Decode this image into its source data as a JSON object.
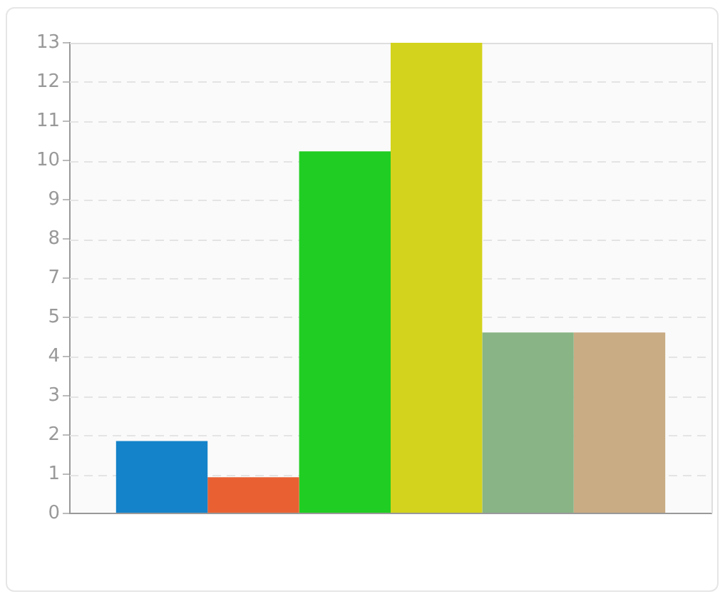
{
  "chart_data": {
    "type": "bar",
    "categories": [
      null
    ],
    "series": [
      {
        "color": "#1483c9",
        "values": [
          2
        ]
      },
      {
        "color": "#e96133",
        "values": [
          1
        ]
      },
      {
        "color": "#20cd22",
        "values": [
          10
        ]
      },
      {
        "color": "#d3d31d",
        "values": [
          13
        ]
      },
      {
        "color": "#89b485",
        "values": [
          5
        ]
      },
      {
        "color": "#c9ab84",
        "values": [
          5
        ]
      }
    ],
    "ylim": [
      0,
      13
    ],
    "yticks": [
      0,
      {
        "value": 1.0833,
        "label": "1"
      },
      {
        "value": 2.1667,
        "label": "2"
      },
      {
        "value": 3.25,
        "label": "3"
      },
      {
        "value": 4.3333,
        "label": "4"
      },
      {
        "value": 5.4167,
        "label": "5"
      },
      {
        "value": 6.5,
        "label": "7"
      },
      {
        "value": 7.5833,
        "label": "8"
      },
      {
        "value": 8.6667,
        "label": "9"
      },
      {
        "value": 9.75,
        "label": "10"
      },
      {
        "value": 10.8333,
        "label": "11"
      },
      {
        "value": 11.9167,
        "label": "12"
      },
      13
    ],
    "grid": "y"
  }
}
